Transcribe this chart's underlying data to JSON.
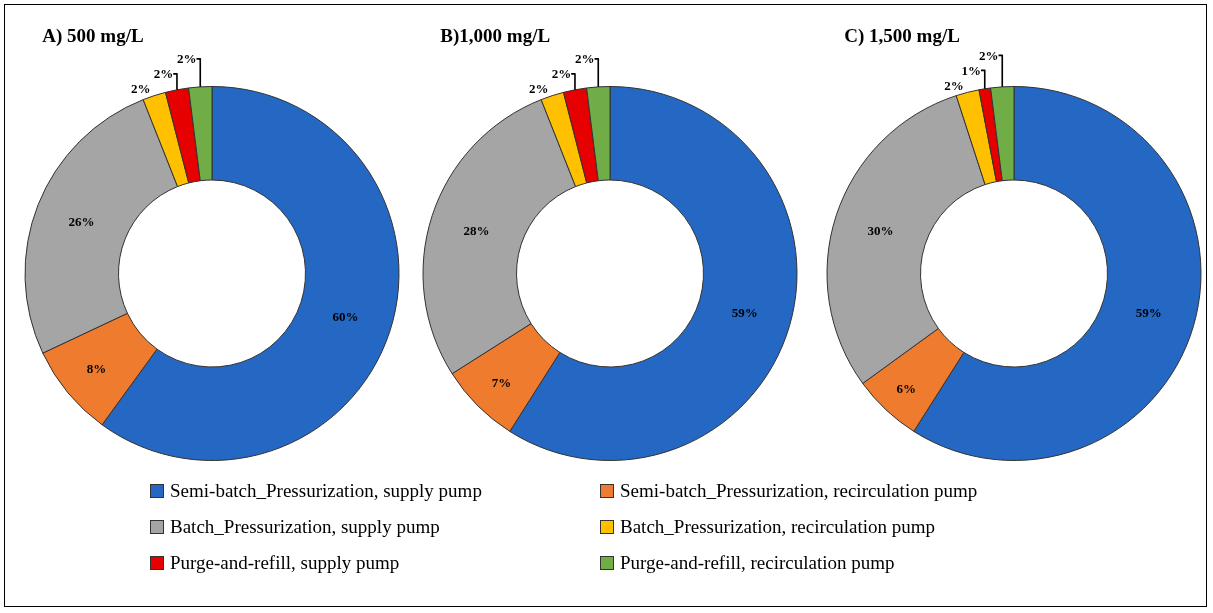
{
  "chart_data": [
    {
      "type": "donut",
      "title": "A) 500 mg/L",
      "categories": [
        "Semi-batch_Pressurization, supply pump",
        "Semi-batch_Pressurization, recirculation pump",
        "Batch_Pressurization, supply pump",
        "Batch_Pressurization, recirculation pump",
        "Purge-and-refill, supply pump",
        "Purge-and-refill, recirculation pump"
      ],
      "values": [
        60,
        8,
        26,
        2,
        2,
        2
      ],
      "value_labels": [
        "60%",
        "8%",
        "26%",
        "2%",
        "2%",
        "2%"
      ],
      "colors": [
        "#2468c4",
        "#ee7b2e",
        "#a5a5a5",
        "#ffc000",
        "#e60000",
        "#70ad47"
      ],
      "legend": "bottom"
    },
    {
      "type": "donut",
      "title": "B)1,000 mg/L",
      "categories": [
        null,
        null,
        null,
        null,
        null,
        null
      ],
      "values": [
        59,
        7,
        28,
        2,
        2,
        2
      ],
      "value_labels": [
        "59%",
        "7%",
        "28%",
        "2%",
        "2%",
        "2%"
      ],
      "colors": [
        "#2468c4",
        "#ee7b2e",
        "#a5a5a5",
        "#ffc000",
        "#e60000",
        "#70ad47"
      ]
    },
    {
      "type": "donut",
      "title": "C) 1,500 mg/L",
      "categories": [
        null,
        null,
        null,
        null,
        null,
        null
      ],
      "values": [
        59,
        6,
        30,
        2,
        1,
        2
      ],
      "value_labels": [
        "59%",
        "6%",
        "30%",
        "2%",
        "1%",
        "2%"
      ],
      "colors": [
        "#2468c4",
        "#ee7b2e",
        "#a5a5a5",
        "#ffc000",
        "#e60000",
        "#70ad47"
      ]
    }
  ]
}
